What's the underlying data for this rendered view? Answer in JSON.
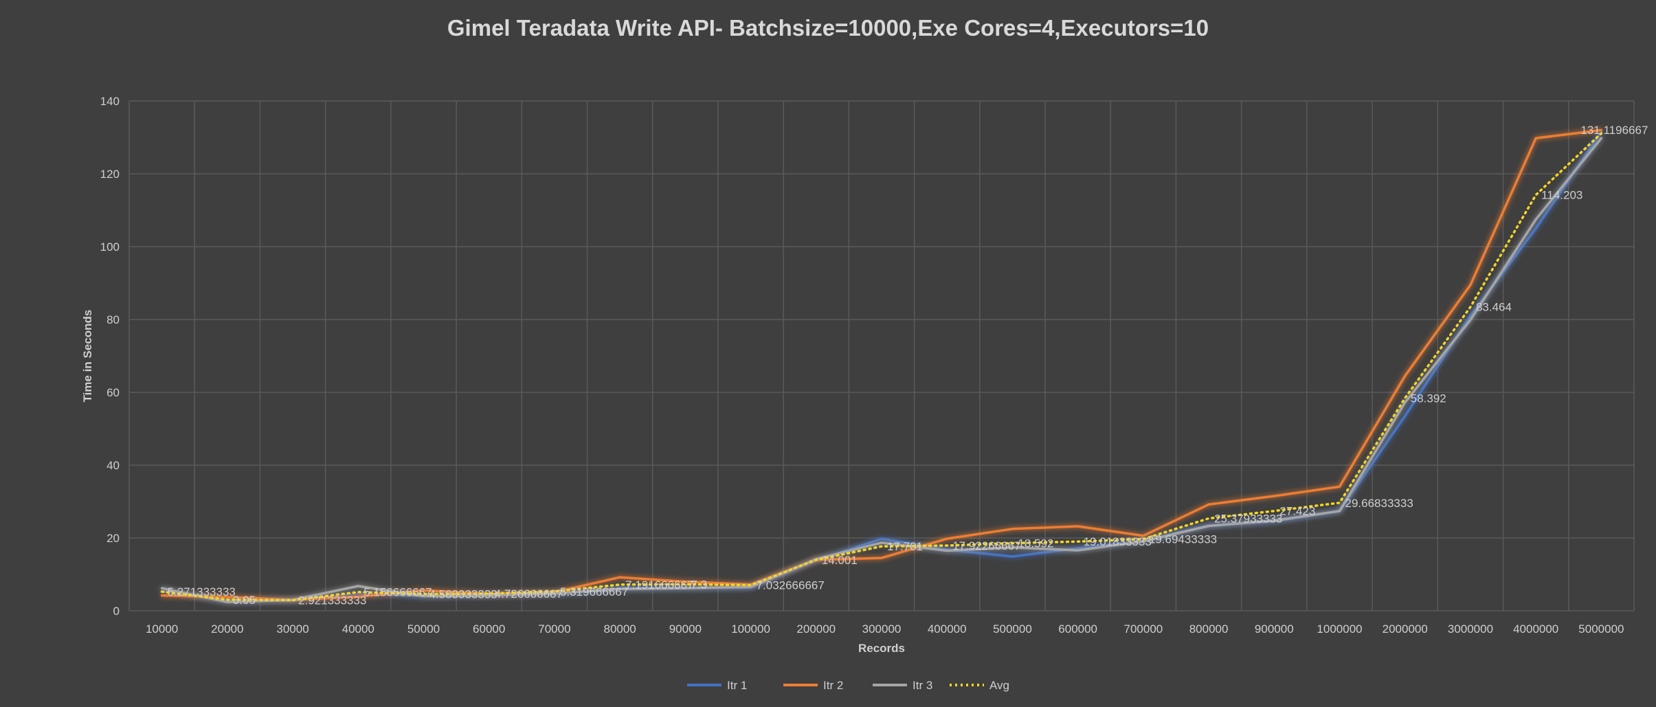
{
  "chart_data": {
    "type": "line",
    "title": "Gimel Teradata Write API- Batchsize=10000,Exe Cores=4,Executors=10",
    "xlabel": "Records",
    "ylabel": "Time in Seconds",
    "ylim": [
      0,
      140
    ],
    "ytick_step": 20,
    "grid": true,
    "legend_position": "bottom",
    "categories": [
      "10000",
      "20000",
      "30000",
      "40000",
      "50000",
      "60000",
      "70000",
      "80000",
      "90000",
      "100000",
      "200000",
      "300000",
      "400000",
      "500000",
      "600000",
      "700000",
      "800000",
      "900000",
      "1000000",
      "2000000",
      "3000000",
      "4000000",
      "5000000"
    ],
    "series": [
      {
        "name": "Itr 1",
        "color": "#4472c4",
        "dash": "solid",
        "values": [
          5.4,
          2.9,
          2.8,
          4.7,
          4.1,
          4.3,
          4.6,
          6.2,
          6.3,
          6.4,
          13.8,
          19.8,
          16.8,
          14.9,
          17.2,
          19.2,
          23.4,
          24.6,
          27.4,
          53.5,
          81.0,
          105.0,
          131.5
        ]
      },
      {
        "name": "Itr 2",
        "color": "#ed7d31",
        "dash": "solid",
        "values": [
          4.2,
          3.8,
          3.0,
          3.9,
          5.6,
          4.6,
          5.1,
          9.2,
          8.0,
          7.2,
          14.0,
          14.5,
          19.8,
          22.5,
          23.2,
          20.6,
          29.2,
          31.5,
          34.1,
          64.5,
          89.5,
          129.8,
          132.0
        ]
      },
      {
        "name": "Itr 3",
        "color": "#a5a5a5",
        "dash": "solid",
        "values": [
          6.2,
          2.4,
          3.0,
          6.8,
          4.0,
          4.3,
          4.8,
          6.0,
          6.2,
          6.6,
          14.2,
          18.7,
          16.5,
          17.4,
          16.6,
          19.1,
          23.3,
          24.8,
          27.4,
          57.2,
          79.9,
          107.5,
          129.8
        ]
      },
      {
        "name": "Avg",
        "color": "#f5d51f",
        "dash": "dotted",
        "values": [
          5.271333333,
          3.05,
          2.921333333,
          5.156666667,
          4.583333333,
          4.726666667,
          5.319666667,
          7.191666667,
          7.3,
          7.032666667,
          14.001,
          17.701,
          17.92266667,
          18.592,
          19.01833333,
          19.69433333,
          25.37933333,
          27.423,
          29.66833333,
          58.392,
          83.464,
          114.203,
          131.1196667
        ]
      }
    ],
    "data_labels": [
      {
        "index": 0,
        "text": "5.271333333"
      },
      {
        "index": 1,
        "text": "3.05"
      },
      {
        "index": 2,
        "text": "2.921333333"
      },
      {
        "index": 3,
        "text": "5.156666667"
      },
      {
        "index": 4,
        "text": "4.583333333"
      },
      {
        "index": 5,
        "text": "4.726666667"
      },
      {
        "index": 6,
        "text": "5.319666667"
      },
      {
        "index": 7,
        "text": "7.191666667"
      },
      {
        "index": 8,
        "text": "7.3"
      },
      {
        "index": 9,
        "text": "7.032666667"
      },
      {
        "index": 10,
        "text": "14.001"
      },
      {
        "index": 11,
        "text": "17.701"
      },
      {
        "index": 12,
        "text": "17.92266667"
      },
      {
        "index": 13,
        "text": "18.592"
      },
      {
        "index": 14,
        "text": "19.01833333"
      },
      {
        "index": 15,
        "text": "19.69433333"
      },
      {
        "index": 16,
        "text": "25.37933333"
      },
      {
        "index": 17,
        "text": "27.423"
      },
      {
        "index": 18,
        "text": "29.66833333"
      },
      {
        "index": 19,
        "text": "58.392"
      },
      {
        "index": 20,
        "text": "83.464"
      },
      {
        "index": 21,
        "text": "114.203"
      },
      {
        "index": 22,
        "text": "131.1196667"
      }
    ]
  }
}
